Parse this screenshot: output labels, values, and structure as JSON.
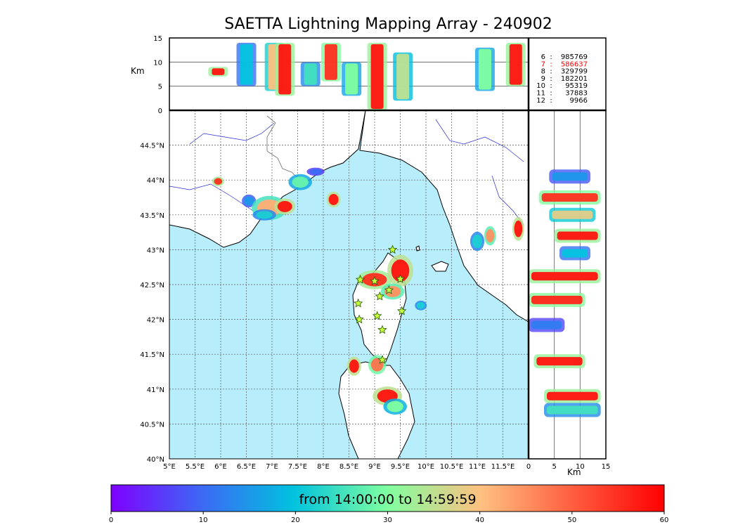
{
  "title": "SAETTA Lightning Mapping Array - 240902",
  "colors": {
    "sea": "#b8eefc",
    "land": "#ffffff",
    "rivers": "#2b2bd6",
    "borders": "#555555",
    "grid": "#555555"
  },
  "chart_data": [
    {
      "panel": "altitude-vs-longitude",
      "type": "scatter",
      "ylabel": "Km",
      "ylim": [
        0,
        15
      ],
      "yticks": [
        "0",
        "5",
        "10",
        "15"
      ],
      "clusters": [
        {
          "lon": 5.95,
          "alt_min": 7,
          "alt_max": 9,
          "time": 58
        },
        {
          "lon": 6.5,
          "alt_min": 5,
          "alt_max": 14,
          "time": 20
        },
        {
          "lon": 7.05,
          "alt_min": 4,
          "alt_max": 14,
          "time": 40
        },
        {
          "lon": 7.25,
          "alt_min": 3,
          "alt_max": 14,
          "time": 58
        },
        {
          "lon": 7.75,
          "alt_min": 5,
          "alt_max": 10,
          "time": 25
        },
        {
          "lon": 8.15,
          "alt_min": 6,
          "alt_max": 14,
          "time": 55
        },
        {
          "lon": 8.55,
          "alt_min": 3,
          "alt_max": 10,
          "time": 30
        },
        {
          "lon": 9.05,
          "alt_min": 0,
          "alt_max": 14,
          "time": 58
        },
        {
          "lon": 9.55,
          "alt_min": 2,
          "alt_max": 12,
          "time": 35
        },
        {
          "lon": 11.15,
          "alt_min": 4,
          "alt_max": 13,
          "time": 30
        },
        {
          "lon": 11.75,
          "alt_min": 5,
          "alt_max": 14,
          "time": 58
        }
      ]
    },
    {
      "panel": "station-counts",
      "type": "table",
      "rows": [
        {
          "stations": "6",
          "count": "985769",
          "color": "#000000"
        },
        {
          "stations": "7",
          "count": "586637",
          "color": "#ff0000"
        },
        {
          "stations": "8",
          "count": "329799",
          "color": "#000000"
        },
        {
          "stations": "9",
          "count": "182201",
          "color": "#000000"
        },
        {
          "stations": "10",
          "count": "95319",
          "color": "#000000"
        },
        {
          "stations": "11",
          "count": "37883",
          "color": "#000000"
        },
        {
          "stations": "12",
          "count": "9966",
          "color": "#000000"
        }
      ]
    },
    {
      "panel": "plan-view",
      "type": "scatter",
      "xlim": [
        5,
        12
      ],
      "ylim": [
        40,
        45
      ],
      "xticks": [
        5,
        5.5,
        6,
        6.5,
        7,
        7.5,
        8,
        8.5,
        9,
        9.5,
        10,
        10.5,
        11,
        11.5
      ],
      "xticklabels": [
        "5°E",
        "5.5°E",
        "6°E",
        "6.5°E",
        "7°E",
        "7.5°E",
        "8°E",
        "8.5°E",
        "9°E",
        "9.5°E",
        "10°E",
        "10.5°E",
        "11°E",
        "11.5°E"
      ],
      "yticks": [
        40,
        40.5,
        41,
        41.5,
        42,
        42.5,
        43,
        43.5,
        44,
        44.5
      ],
      "yticklabels": [
        "40°N",
        "40.5°N",
        "41°N",
        "41.5°N",
        "42°N",
        "42.5°N",
        "43°N",
        "43.5°N",
        "44°N",
        "44.5°N"
      ],
      "clusters": [
        {
          "lon": 5.95,
          "lat": 43.98,
          "rx": 0.1,
          "ry": 0.06,
          "time": 55
        },
        {
          "lon": 6.55,
          "lat": 43.7,
          "rx": 0.12,
          "ry": 0.08,
          "time": 15
        },
        {
          "lon": 6.95,
          "lat": 43.6,
          "rx": 0.3,
          "ry": 0.15,
          "time": 42
        },
        {
          "lon": 7.25,
          "lat": 43.62,
          "rx": 0.18,
          "ry": 0.1,
          "time": 58
        },
        {
          "lon": 6.85,
          "lat": 43.5,
          "rx": 0.2,
          "ry": 0.07,
          "time": 22
        },
        {
          "lon": 7.55,
          "lat": 43.97,
          "rx": 0.2,
          "ry": 0.1,
          "time": 28
        },
        {
          "lon": 7.85,
          "lat": 44.12,
          "rx": 0.15,
          "ry": 0.05,
          "time": 10
        },
        {
          "lon": 8.2,
          "lat": 43.72,
          "rx": 0.12,
          "ry": 0.1,
          "time": 58
        },
        {
          "lon": 9.0,
          "lat": 42.57,
          "rx": 0.3,
          "ry": 0.12,
          "time": 55
        },
        {
          "lon": 9.5,
          "lat": 42.7,
          "rx": 0.22,
          "ry": 0.2,
          "time": 58
        },
        {
          "lon": 9.35,
          "lat": 42.4,
          "rx": 0.2,
          "ry": 0.1,
          "time": 45
        },
        {
          "lon": 9.9,
          "lat": 42.2,
          "rx": 0.1,
          "ry": 0.06,
          "time": 22
        },
        {
          "lon": 8.6,
          "lat": 41.33,
          "rx": 0.12,
          "ry": 0.12,
          "time": 58
        },
        {
          "lon": 9.05,
          "lat": 41.35,
          "rx": 0.15,
          "ry": 0.12,
          "time": 48
        },
        {
          "lon": 9.25,
          "lat": 40.9,
          "rx": 0.25,
          "ry": 0.12,
          "time": 58
        },
        {
          "lon": 9.4,
          "lat": 40.75,
          "rx": 0.2,
          "ry": 0.1,
          "time": 30
        },
        {
          "lon": 11.0,
          "lat": 43.12,
          "rx": 0.12,
          "ry": 0.12,
          "time": 22
        },
        {
          "lon": 11.25,
          "lat": 43.2,
          "rx": 0.1,
          "ry": 0.12,
          "time": 45
        },
        {
          "lon": 11.8,
          "lat": 43.3,
          "rx": 0.1,
          "ry": 0.15,
          "time": 58
        }
      ],
      "stations": [
        {
          "lon": 9.35,
          "lat": 43.0
        },
        {
          "lon": 8.72,
          "lat": 42.57
        },
        {
          "lon": 9.0,
          "lat": 42.55
        },
        {
          "lon": 9.5,
          "lat": 42.58
        },
        {
          "lon": 9.28,
          "lat": 42.42
        },
        {
          "lon": 9.1,
          "lat": 42.33
        },
        {
          "lon": 8.68,
          "lat": 42.23
        },
        {
          "lon": 9.05,
          "lat": 42.05
        },
        {
          "lon": 8.7,
          "lat": 42.0
        },
        {
          "lon": 9.53,
          "lat": 42.12
        },
        {
          "lon": 9.15,
          "lat": 41.85
        },
        {
          "lon": 9.15,
          "lat": 41.42
        }
      ]
    },
    {
      "panel": "latitude-vs-altitude",
      "type": "scatter",
      "xlabel": "Km",
      "xlim": [
        0,
        15
      ],
      "xticks": [
        "0",
        "5",
        "10",
        "15"
      ],
      "clusters": [
        {
          "lat": 44.05,
          "alt_min": 4,
          "alt_max": 12,
          "time": 15
        },
        {
          "lat": 43.75,
          "alt_min": 2,
          "alt_max": 14,
          "time": 55
        },
        {
          "lat": 43.5,
          "alt_min": 4,
          "alt_max": 13,
          "time": 38
        },
        {
          "lat": 43.2,
          "alt_min": 5,
          "alt_max": 14,
          "time": 58
        },
        {
          "lat": 42.95,
          "alt_min": 6,
          "alt_max": 12,
          "time": 20
        },
        {
          "lat": 42.62,
          "alt_min": 0,
          "alt_max": 14,
          "time": 58
        },
        {
          "lat": 42.28,
          "alt_min": 0,
          "alt_max": 11,
          "time": 56
        },
        {
          "lat": 41.92,
          "alt_min": 0,
          "alt_max": 7,
          "time": 12
        },
        {
          "lat": 41.4,
          "alt_min": 1,
          "alt_max": 11,
          "time": 58
        },
        {
          "lat": 40.9,
          "alt_min": 3,
          "alt_max": 14,
          "time": 58
        },
        {
          "lat": 40.7,
          "alt_min": 3,
          "alt_max": 14,
          "time": 25
        }
      ]
    },
    {
      "panel": "colorbar",
      "type": "heatmap",
      "label": "from 14:00:00 to 14:59:59",
      "range": [
        0,
        60
      ],
      "ticks": [
        "0",
        "10",
        "20",
        "30",
        "40",
        "50",
        "60"
      ]
    }
  ]
}
